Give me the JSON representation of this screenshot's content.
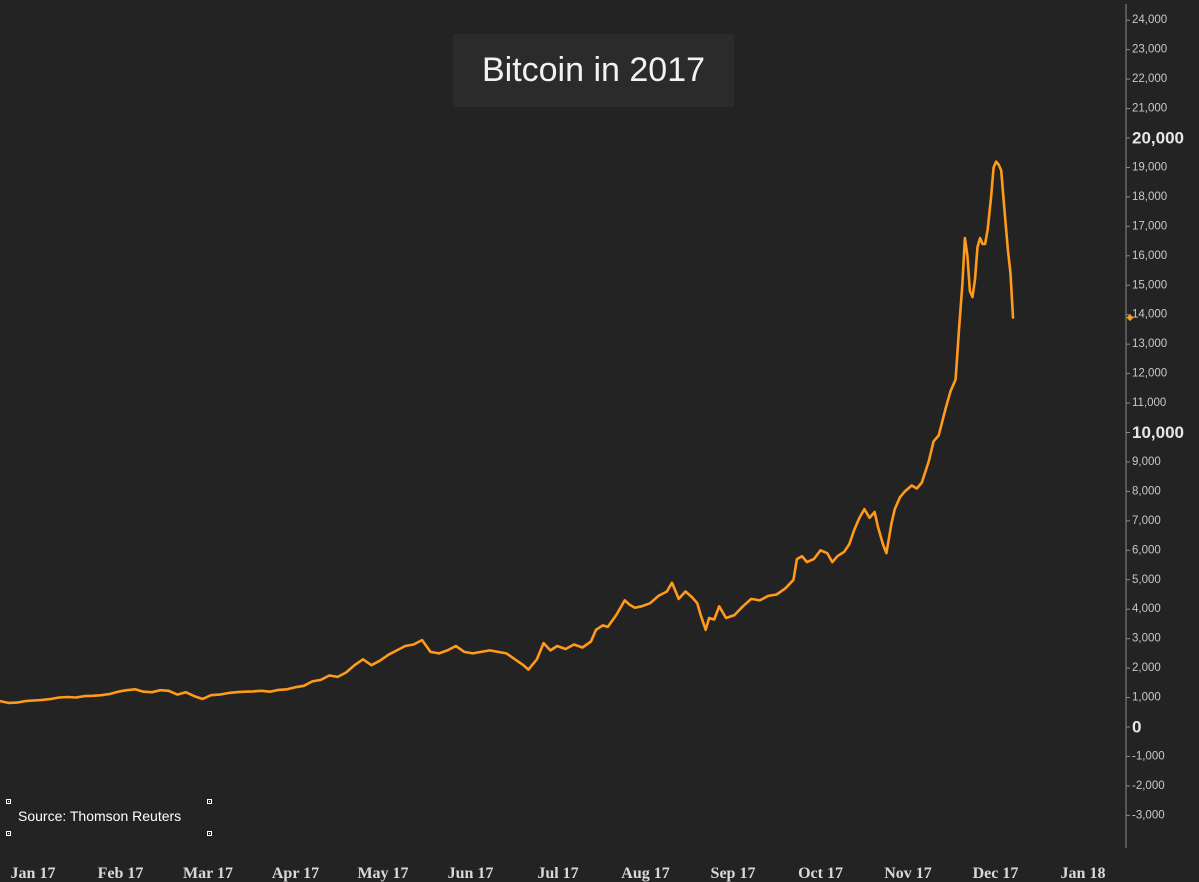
{
  "chart_data": {
    "type": "line",
    "title": "Bitcoin in 2017",
    "source": "Source: Thomson Reuters",
    "xlabel": "",
    "ylabel": "",
    "y_axis_position": "right",
    "ylim": [
      -4000,
      24500
    ],
    "grid": false,
    "x_tick_labels": [
      "Jan 17",
      "Feb 17",
      "Mar 17",
      "Apr 17",
      "May 17",
      "Jun 17",
      "Jul 17",
      "Aug 17",
      "Sep 17",
      "Oct 17",
      "Nov 17",
      "Dec 17",
      "Jan 18"
    ],
    "y_ticks": [
      {
        "value": 24000,
        "label": "24,000",
        "major": false
      },
      {
        "value": 23000,
        "label": "23,000",
        "major": false
      },
      {
        "value": 22000,
        "label": "22,000",
        "major": false
      },
      {
        "value": 21000,
        "label": "21,000",
        "major": false
      },
      {
        "value": 20000,
        "label": "20,000",
        "major": true
      },
      {
        "value": 19000,
        "label": "19,000",
        "major": false
      },
      {
        "value": 18000,
        "label": "18,000",
        "major": false
      },
      {
        "value": 17000,
        "label": "17,000",
        "major": false
      },
      {
        "value": 16000,
        "label": "16,000",
        "major": false
      },
      {
        "value": 15000,
        "label": "15,000",
        "major": false
      },
      {
        "value": 14000,
        "label": "14,000",
        "major": false
      },
      {
        "value": 13000,
        "label": "13,000",
        "major": false
      },
      {
        "value": 12000,
        "label": "12,000",
        "major": false
      },
      {
        "value": 11000,
        "label": "11,000",
        "major": false
      },
      {
        "value": 10000,
        "label": "10,000",
        "major": true
      },
      {
        "value": 9000,
        "label": "9,000",
        "major": false
      },
      {
        "value": 8000,
        "label": "8,000",
        "major": false
      },
      {
        "value": 7000,
        "label": "7,000",
        "major": false
      },
      {
        "value": 6000,
        "label": "6,000",
        "major": false
      },
      {
        "value": 5000,
        "label": "5,000",
        "major": false
      },
      {
        "value": 4000,
        "label": "4,000",
        "major": false
      },
      {
        "value": 3000,
        "label": "3,000",
        "major": false
      },
      {
        "value": 2000,
        "label": "2,000",
        "major": false
      },
      {
        "value": 1000,
        "label": "1,000",
        "major": false
      },
      {
        "value": 0,
        "label": "0",
        "major": true
      },
      {
        "value": -1000,
        "label": "-1,000",
        "major": false
      },
      {
        "value": -2000,
        "label": "-2,000",
        "major": false
      },
      {
        "value": -3000,
        "label": "-3,000",
        "major": false
      }
    ],
    "last_value": 13900,
    "series": [
      {
        "color": "#ff9a1a",
        "points": [
          [
            0.0,
            880
          ],
          [
            0.5,
            820
          ],
          [
            1.0,
            830
          ],
          [
            1.5,
            880
          ],
          [
            2.0,
            900
          ],
          [
            2.5,
            920
          ],
          [
            3.0,
            950
          ],
          [
            3.5,
            1000
          ],
          [
            4.0,
            1020
          ],
          [
            4.5,
            1000
          ],
          [
            5.0,
            1050
          ],
          [
            5.5,
            1060
          ],
          [
            6.0,
            1080
          ],
          [
            6.5,
            1120
          ],
          [
            7.0,
            1200
          ],
          [
            7.5,
            1250
          ],
          [
            8.0,
            1280
          ],
          [
            8.5,
            1200
          ],
          [
            9.0,
            1180
          ],
          [
            9.5,
            1250
          ],
          [
            10.0,
            1230
          ],
          [
            10.5,
            1100
          ],
          [
            11.0,
            1180
          ],
          [
            11.5,
            1050
          ],
          [
            12.0,
            950
          ],
          [
            12.5,
            1080
          ],
          [
            13.0,
            1100
          ],
          [
            13.5,
            1150
          ],
          [
            14.0,
            1180
          ],
          [
            14.5,
            1200
          ],
          [
            15.0,
            1210
          ],
          [
            15.5,
            1230
          ],
          [
            16.0,
            1200
          ],
          [
            16.5,
            1260
          ],
          [
            17.0,
            1280
          ],
          [
            17.5,
            1350
          ],
          [
            18.0,
            1400
          ],
          [
            18.5,
            1550
          ],
          [
            19.0,
            1600
          ],
          [
            19.5,
            1750
          ],
          [
            20.0,
            1700
          ],
          [
            20.5,
            1850
          ],
          [
            21.0,
            2100
          ],
          [
            21.5,
            2300
          ],
          [
            22.0,
            2100
          ],
          [
            22.5,
            2250
          ],
          [
            23.0,
            2450
          ],
          [
            23.5,
            2600
          ],
          [
            24.0,
            2750
          ],
          [
            24.5,
            2800
          ],
          [
            25.0,
            2950
          ],
          [
            25.5,
            2550
          ],
          [
            26.0,
            2500
          ],
          [
            26.5,
            2600
          ],
          [
            27.0,
            2750
          ],
          [
            27.5,
            2550
          ],
          [
            28.0,
            2500
          ],
          [
            28.5,
            2550
          ],
          [
            29.0,
            2600
          ],
          [
            29.5,
            2550
          ],
          [
            30.0,
            2500
          ],
          [
            30.5,
            2300
          ],
          [
            31.0,
            2100
          ],
          [
            31.3,
            1950
          ],
          [
            31.8,
            2300
          ],
          [
            32.2,
            2850
          ],
          [
            32.6,
            2600
          ],
          [
            33.0,
            2750
          ],
          [
            33.5,
            2650
          ],
          [
            34.0,
            2800
          ],
          [
            34.5,
            2700
          ],
          [
            35.0,
            2900
          ],
          [
            35.3,
            3300
          ],
          [
            35.7,
            3450
          ],
          [
            36.0,
            3400
          ],
          [
            36.5,
            3800
          ],
          [
            37.0,
            4300
          ],
          [
            37.3,
            4150
          ],
          [
            37.6,
            4050
          ],
          [
            38.0,
            4100
          ],
          [
            38.5,
            4200
          ],
          [
            39.0,
            4450
          ],
          [
            39.5,
            4600
          ],
          [
            39.8,
            4900
          ],
          [
            40.2,
            4350
          ],
          [
            40.6,
            4600
          ],
          [
            41.0,
            4400
          ],
          [
            41.3,
            4200
          ],
          [
            41.5,
            3800
          ],
          [
            41.8,
            3300
          ],
          [
            42.0,
            3700
          ],
          [
            42.3,
            3650
          ],
          [
            42.6,
            4100
          ],
          [
            43.0,
            3700
          ],
          [
            43.5,
            3800
          ],
          [
            44.0,
            4100
          ],
          [
            44.5,
            4350
          ],
          [
            45.0,
            4300
          ],
          [
            45.5,
            4450
          ],
          [
            46.0,
            4500
          ],
          [
            46.5,
            4700
          ],
          [
            47.0,
            5000
          ],
          [
            47.2,
            5700
          ],
          [
            47.5,
            5800
          ],
          [
            47.8,
            5600
          ],
          [
            48.2,
            5700
          ],
          [
            48.6,
            6000
          ],
          [
            49.0,
            5900
          ],
          [
            49.3,
            5600
          ],
          [
            49.6,
            5800
          ],
          [
            50.0,
            5950
          ],
          [
            50.3,
            6200
          ],
          [
            50.6,
            6700
          ],
          [
            50.9,
            7100
          ],
          [
            51.2,
            7400
          ],
          [
            51.5,
            7100
          ],
          [
            51.8,
            7300
          ],
          [
            52.0,
            6800
          ],
          [
            52.3,
            6200
          ],
          [
            52.5,
            5900
          ],
          [
            52.8,
            6900
          ],
          [
            53.0,
            7400
          ],
          [
            53.3,
            7800
          ],
          [
            53.6,
            8000
          ],
          [
            54.0,
            8200
          ],
          [
            54.3,
            8100
          ],
          [
            54.6,
            8300
          ],
          [
            55.0,
            9000
          ],
          [
            55.3,
            9700
          ],
          [
            55.6,
            9900
          ],
          [
            56.0,
            10800
          ],
          [
            56.3,
            11400
          ],
          [
            56.6,
            11800
          ],
          [
            56.8,
            13500
          ],
          [
            57.0,
            15000
          ],
          [
            57.15,
            16600
          ],
          [
            57.3,
            16000
          ],
          [
            57.45,
            14800
          ],
          [
            57.6,
            14600
          ],
          [
            57.75,
            15200
          ],
          [
            57.9,
            16300
          ],
          [
            58.05,
            16600
          ],
          [
            58.2,
            16400
          ],
          [
            58.35,
            16400
          ],
          [
            58.5,
            16900
          ],
          [
            58.7,
            18000
          ],
          [
            58.85,
            19000
          ],
          [
            59.0,
            19200
          ],
          [
            59.15,
            19100
          ],
          [
            59.3,
            18900
          ],
          [
            59.5,
            17500
          ],
          [
            59.7,
            16200
          ],
          [
            59.85,
            15400
          ],
          [
            60.0,
            13900
          ]
        ]
      }
    ]
  }
}
